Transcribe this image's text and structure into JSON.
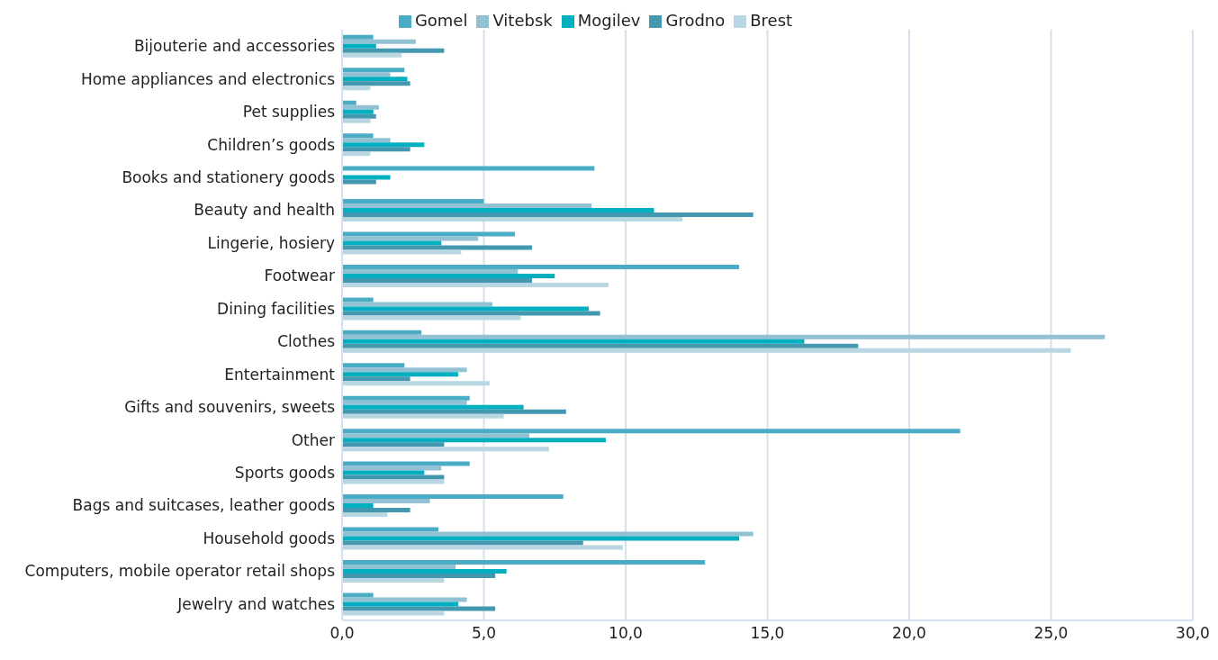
{
  "chart_data": {
    "type": "bar",
    "orientation": "horizontal",
    "legend": "top",
    "grid": "x",
    "categories": [
      "Bijouterie and accessories",
      "Home appliances and electronics",
      "Pet supplies",
      "Children’s goods",
      "Books and stationery goods",
      "Beauty and health",
      "Lingerie, hosiery",
      "Footwear",
      "Dining facilities",
      "Clothes",
      "Entertainment",
      "Gifts and souvenirs, sweets",
      "Other",
      "Sports goods",
      "Bags and suitcases, leather goods",
      "Household goods",
      "Computers, mobile operator retail shops",
      "Jewelry and watches"
    ],
    "series": [
      {
        "name": "Gomel",
        "color": "#4bacc6",
        "values": [
          1.1,
          2.2,
          0.5,
          1.1,
          8.9,
          5.0,
          6.1,
          14.0,
          1.1,
          2.8,
          2.2,
          4.5,
          21.8,
          4.5,
          7.8,
          3.4,
          12.8,
          1.1
        ]
      },
      {
        "name": "Vitebsk",
        "color": "#92c1d4",
        "values": [
          2.6,
          1.7,
          1.3,
          1.7,
          null,
          8.8,
          4.8,
          6.2,
          5.3,
          26.9,
          4.4,
          4.4,
          6.6,
          3.5,
          3.1,
          14.5,
          4.0,
          4.4
        ]
      },
      {
        "name": "Mogilev",
        "color": "#00b0c0",
        "values": [
          1.2,
          2.3,
          1.1,
          2.9,
          1.7,
          11.0,
          3.5,
          7.5,
          8.7,
          16.3,
          4.1,
          6.4,
          9.3,
          2.9,
          1.1,
          14.0,
          5.8,
          4.1
        ]
      },
      {
        "name": "Grodno",
        "color": "#4398b0",
        "values": [
          3.6,
          2.4,
          1.2,
          2.4,
          1.2,
          14.5,
          6.7,
          6.7,
          9.1,
          18.2,
          2.4,
          7.9,
          3.6,
          3.6,
          2.4,
          8.5,
          5.4,
          5.4
        ]
      },
      {
        "name": "Brest",
        "color": "#b9d7e3",
        "values": [
          2.1,
          1.0,
          1.0,
          1.0,
          null,
          12.0,
          4.2,
          9.4,
          6.3,
          25.7,
          5.2,
          5.7,
          7.3,
          3.6,
          1.6,
          9.9,
          3.6,
          3.6
        ]
      }
    ],
    "xlim": [
      0,
      30
    ],
    "xticks": [
      {
        "value": 0,
        "label": "0,0"
      },
      {
        "value": 5,
        "label": "5,0"
      },
      {
        "value": 10,
        "label": "10,0"
      },
      {
        "value": 15,
        "label": "15,0"
      },
      {
        "value": 20,
        "label": "20,0"
      },
      {
        "value": 25,
        "label": "25,0"
      },
      {
        "value": 30,
        "label": "30,0"
      }
    ]
  }
}
